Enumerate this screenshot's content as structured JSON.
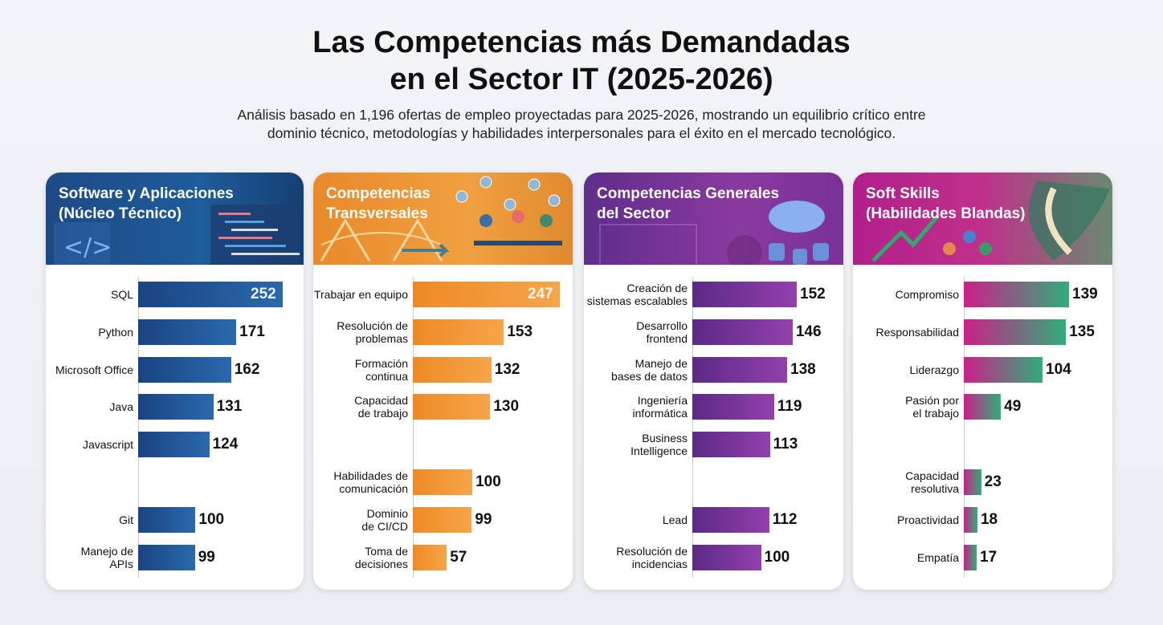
{
  "title": "Las Competencias más Demandadas en el Sector IT (2025-2026)",
  "subtitle": "Análisis basado en 1,196 ofertas de empleo proyectadas para 2025-2026, mostrando un equilibrio crítico entre dominio técnico, metodologías y habilidades interpersonales para el éxito en el mercado tecnológico.",
  "chart_data": [
    {
      "type": "bar",
      "orientation": "horizontal",
      "title": "Software y Aplicaciones\n(Núcleo Técnico)",
      "color": "#1d4f8c",
      "categories": [
        "SQL",
        "Python",
        "Microsoft Office",
        "Java",
        "Javascript",
        "Git",
        "Manejo de\nAPIs"
      ],
      "values": [
        252,
        171,
        162,
        131,
        124,
        100,
        99
      ]
    },
    {
      "type": "bar",
      "orientation": "horizontal",
      "title": "Competencias\nTransversales",
      "color": "#f0902a",
      "categories": [
        "Trabajar en equipo",
        "Resolución de\nproblemas",
        "Formación\ncontinua",
        "Capacidad\nde trabajo",
        "Habilidades de\ncomunicación",
        "Dominio\nde CI/CD",
        "Toma de\ndecisiones"
      ],
      "values": [
        247,
        153,
        132,
        130,
        100,
        99,
        57
      ]
    },
    {
      "type": "bar",
      "orientation": "horizontal",
      "title": "Competencias Generales\ndel Sector",
      "color": "#7a3399",
      "categories": [
        "Creación de\nsistemas escalables",
        "Desarrollo\nfrontend",
        "Manejo de\nbases de datos",
        "Ingeniería\ninformática",
        "Business\nIntelligence",
        "Lead",
        "Resolución de\nincidencias"
      ],
      "values": [
        152,
        146,
        138,
        119,
        113,
        112,
        100
      ]
    },
    {
      "type": "bar",
      "orientation": "horizontal",
      "title": "Soft Skills\n(Habilidades Blandas)",
      "color": "#c4228c",
      "categories": [
        "Compromiso",
        "Responsabilidad",
        "Liderazgo",
        "Pasión por\nel trabajo",
        "Capacidad\nresolutiva",
        "Proactividad",
        "Empatía"
      ],
      "values": [
        139,
        135,
        104,
        49,
        23,
        18,
        17
      ]
    }
  ]
}
